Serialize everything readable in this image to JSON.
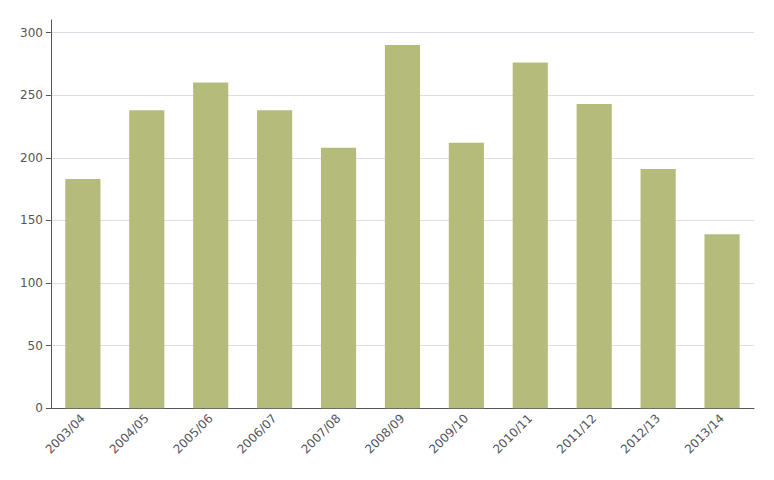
{
  "chart_data": {
    "type": "bar",
    "categories": [
      "2003/04",
      "2004/05",
      "2005/06",
      "2006/07",
      "2007/08",
      "2008/09",
      "2009/10",
      "2010/11",
      "2011/12",
      "2012/13",
      "2013/14"
    ],
    "values": [
      183,
      238,
      260,
      238,
      208,
      290,
      212,
      276,
      243,
      191,
      139
    ],
    "color": "#b5bb7a",
    "ylim": [
      0,
      310
    ],
    "yticks": [
      0,
      50,
      100,
      150,
      200,
      250,
      300
    ],
    "grid": true
  }
}
